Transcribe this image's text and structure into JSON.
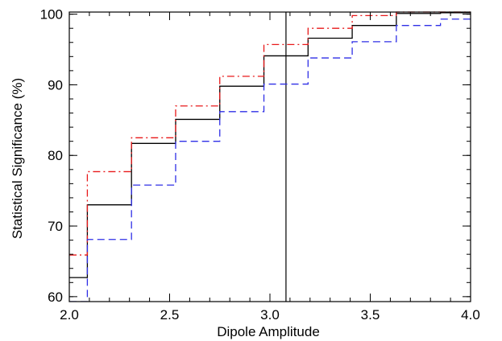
{
  "chart_data": {
    "type": "line",
    "title": "",
    "xlabel": "Dipole Amplitude",
    "ylabel": "Statistical Significance (%)",
    "xlim": [
      2.0,
      4.0
    ],
    "ylim": [
      59.3,
      100.3
    ],
    "x_ticks": [
      2.0,
      2.5,
      3.0,
      3.5,
      4.0
    ],
    "x_tick_labels": [
      "2.0",
      "2.5",
      "3.0",
      "3.5",
      "4.0"
    ],
    "y_ticks": [
      60,
      70,
      80,
      90,
      100
    ],
    "y_tick_labels": [
      "60",
      "70",
      "80",
      "90",
      "100"
    ],
    "x_minor_step": 0.1,
    "y_minor_step": 2,
    "grid": false,
    "step_edges": [
      2.0,
      2.09,
      2.31,
      2.53,
      2.75,
      2.97,
      3.19,
      3.41,
      3.63,
      3.85,
      4.0
    ],
    "series": [
      {
        "style": "solid",
        "color": "#000000",
        "values": [
          62.7,
          73.0,
          81.7,
          85.1,
          89.8,
          94.1,
          96.6,
          98.4,
          100.1,
          100.2
        ]
      },
      {
        "style": "dash-dot",
        "color": "#e8191a",
        "values": [
          65.9,
          77.7,
          82.5,
          87.0,
          91.2,
          95.7,
          98.0,
          99.8,
          100.3,
          100.3
        ]
      },
      {
        "style": "dashed",
        "color": "#2f2fe6",
        "values": [
          59.3,
          68.1,
          75.8,
          82.0,
          86.2,
          90.1,
          93.8,
          96.1,
          98.4,
          99.3
        ]
      }
    ],
    "vertical_line": {
      "x": 3.08,
      "color": "#000000"
    }
  }
}
